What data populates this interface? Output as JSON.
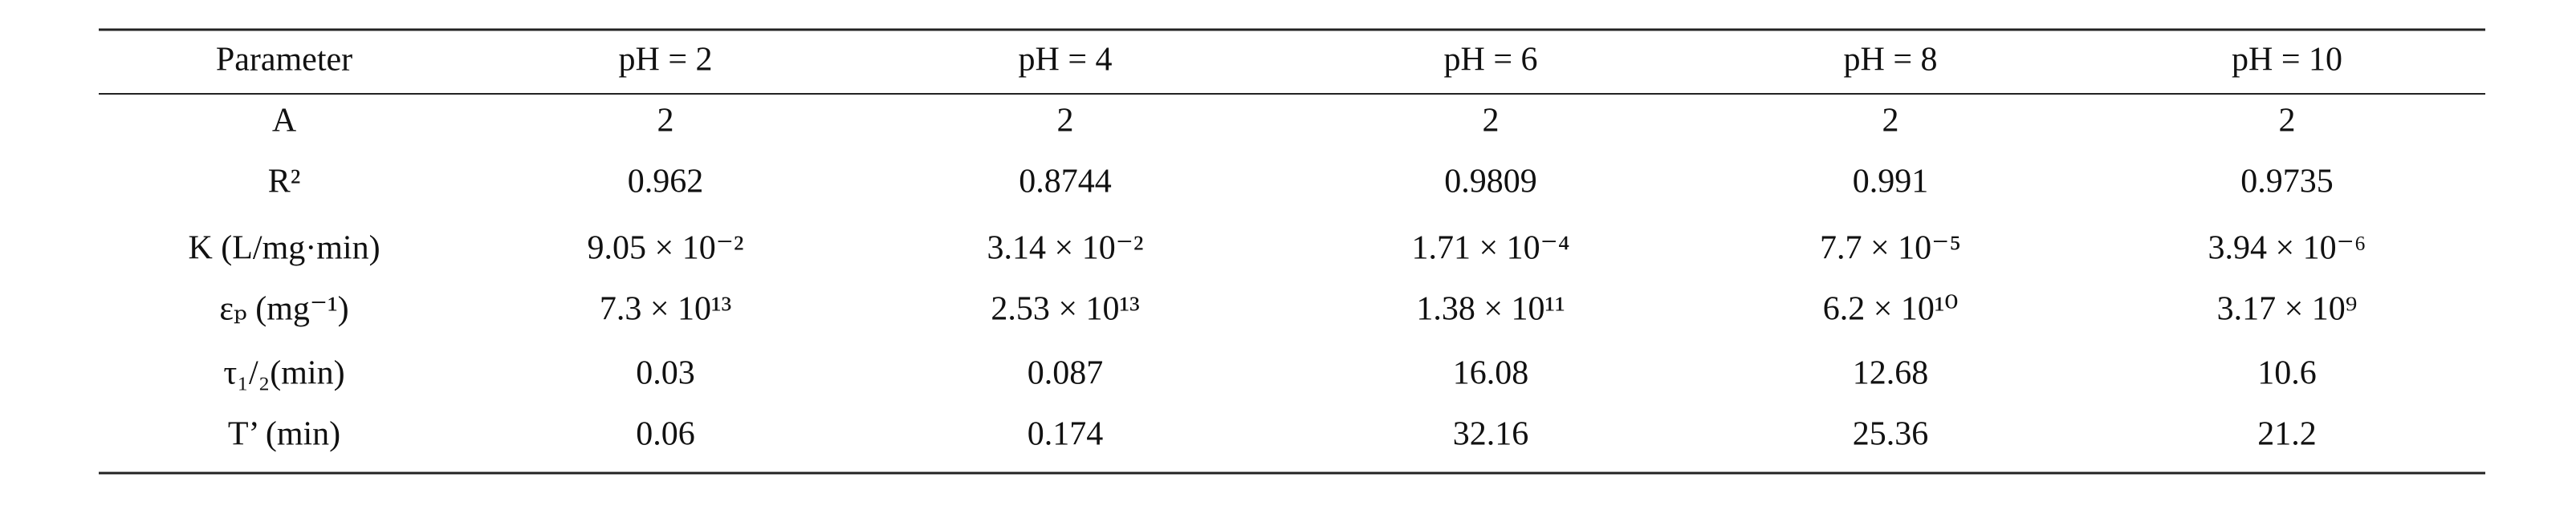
{
  "table": {
    "header": [
      "Parameter",
      "pH = 2",
      "pH = 4",
      "pH = 6",
      "pH = 8",
      "pH = 10"
    ],
    "rows": [
      [
        "A",
        "2",
        "2",
        "2",
        "2",
        "2"
      ],
      [
        "R²",
        "0.962",
        "0.8744",
        "0.9809",
        "0.991",
        "0.9735"
      ],
      [
        "K (L/mg·min)",
        "9.05 × 10⁻²",
        "3.14 × 10⁻²",
        "1.71 × 10⁻⁴",
        "7.7 × 10⁻⁵",
        "3.94 × 10⁻⁶"
      ],
      [
        "εₚ (mg⁻¹)",
        "7.3 × 10¹³",
        "2.53 × 10¹³",
        "1.38 × 10¹¹",
        "6.2 × 10¹⁰",
        "3.17 × 10⁹"
      ],
      [
        "τ₁/₂(min)",
        "0.03",
        "0.087",
        "16.08",
        "12.68",
        "10.6"
      ],
      [
        "T’ (min)",
        "0.06",
        "0.174",
        "32.16",
        "25.36",
        "21.2"
      ]
    ]
  }
}
